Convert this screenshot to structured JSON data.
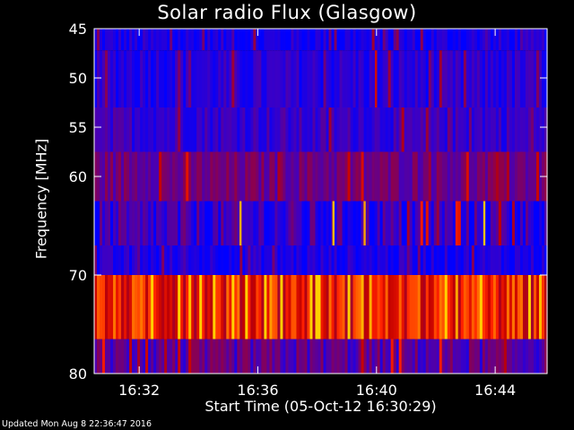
{
  "chart_data": {
    "type": "heatmap",
    "title": "Solar radio Flux (Glasgow)",
    "xlabel": "Start Time (05-Oct-12 16:30:29)",
    "ylabel": "Frequency [MHz]",
    "xlim": [
      "16:30:29",
      "16:45:45"
    ],
    "ylim": [
      45,
      80
    ],
    "x_ticks": [
      "16:32",
      "16:36",
      "16:40",
      "16:44"
    ],
    "y_ticks": [
      45,
      50,
      55,
      60,
      70,
      80
    ],
    "colorscale": [
      "#0000ff",
      "#4000c0",
      "#800060",
      "#c00000",
      "#ff2000",
      "#ff8000",
      "#ffd000"
    ],
    "bands": [
      {
        "from_mhz": 45.0,
        "to_mhz": 47.2,
        "level": 0.05,
        "variability": 0.12
      },
      {
        "from_mhz": 47.2,
        "to_mhz": 53.0,
        "level": 0.1,
        "variability": 0.1
      },
      {
        "from_mhz": 53.0,
        "to_mhz": 57.5,
        "level": 0.14,
        "variability": 0.1
      },
      {
        "from_mhz": 57.5,
        "to_mhz": 62.5,
        "level": 0.28,
        "variability": 0.1
      },
      {
        "from_mhz": 62.5,
        "to_mhz": 67.0,
        "level": 0.12,
        "variability": 0.18
      },
      {
        "from_mhz": 67.0,
        "to_mhz": 70.0,
        "level": 0.07,
        "variability": 0.1
      },
      {
        "from_mhz": 70.0,
        "to_mhz": 76.5,
        "level": 0.62,
        "variability": 0.2
      },
      {
        "from_mhz": 76.5,
        "to_mhz": 80.0,
        "level": 0.22,
        "variability": 0.14
      }
    ],
    "bursts": [
      {
        "time": "16:35:25",
        "from_mhz": 62.5,
        "to_mhz": 67.0,
        "level": 0.92
      },
      {
        "time": "16:38:33",
        "from_mhz": 62.5,
        "to_mhz": 67.0,
        "level": 0.95
      },
      {
        "time": "16:39:36",
        "from_mhz": 62.5,
        "to_mhz": 67.0,
        "level": 0.9
      },
      {
        "time": "16:43:38",
        "from_mhz": 62.5,
        "to_mhz": 67.0,
        "level": 0.97
      },
      {
        "time": "16:39:59",
        "from_mhz": 47.2,
        "to_mhz": 53.0,
        "level": 0.55
      }
    ]
  },
  "footer": {
    "updated": "Updated Mon Aug  8 22:36:47 2016"
  }
}
